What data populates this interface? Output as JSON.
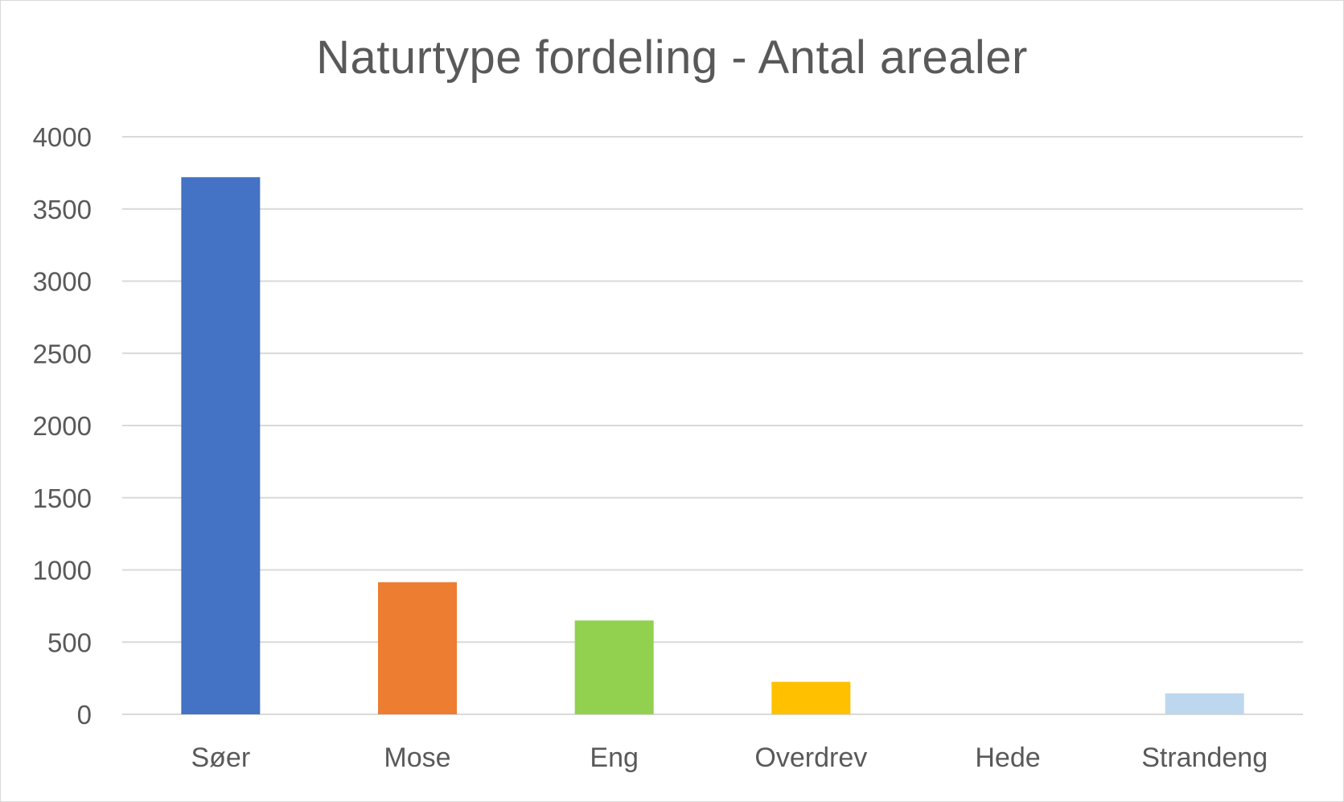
{
  "chart_data": {
    "type": "bar",
    "title": "Naturtype fordeling - Antal arealer",
    "xlabel": "",
    "ylabel": "",
    "categories": [
      "Søer",
      "Mose",
      "Eng",
      "Overdrev",
      "Hede",
      "Strandeng"
    ],
    "values": [
      3720,
      915,
      650,
      225,
      0,
      145
    ],
    "colors": [
      "#4472C4",
      "#ED7D31",
      "#92D050",
      "#FFC000",
      "#A5A5A5",
      "#BDD7EE"
    ],
    "ylim": [
      0,
      4000
    ],
    "yticks": [
      0,
      500,
      1000,
      1500,
      2000,
      2500,
      3000,
      3500,
      4000
    ],
    "ytick_labels": [
      "0",
      "500",
      "1000",
      "1500",
      "2000",
      "2500",
      "3000",
      "3500",
      "4000"
    ],
    "grid": true,
    "legend": "none",
    "gridline_color": "#d9d9d9",
    "axis_text_color": "#595959"
  }
}
